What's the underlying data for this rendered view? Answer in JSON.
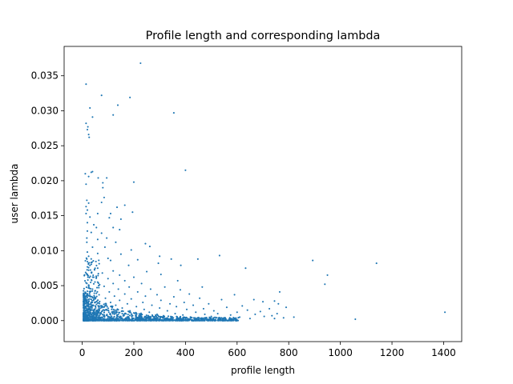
{
  "chart_data": {
    "type": "scatter",
    "title": "Profile length and corresponding lambda",
    "xlabel": "profile length",
    "ylabel": "user lambda",
    "xlim": [
      -70,
      1470
    ],
    "ylim": [
      -0.003,
      0.0392
    ],
    "xticks": [
      0,
      200,
      400,
      600,
      800,
      1000,
      1200,
      1400
    ],
    "xtick_labels": [
      "0",
      "200",
      "400",
      "600",
      "800",
      "1000",
      "1200",
      "1400"
    ],
    "yticks": [
      0.0,
      0.005,
      0.01,
      0.015,
      0.02,
      0.025,
      0.03,
      0.035
    ],
    "ytick_labels": [
      "0.000",
      "0.005",
      "0.010",
      "0.015",
      "0.020",
      "0.025",
      "0.030",
      "0.035"
    ],
    "grid": false,
    "legend": "none",
    "marker_color": "#1f77b4",
    "marker_size": 1.5,
    "points": [
      [
        226,
        0.0368
      ],
      [
        15,
        0.0338
      ],
      [
        75,
        0.0322
      ],
      [
        185,
        0.0319
      ],
      [
        30,
        0.0304
      ],
      [
        138,
        0.0308
      ],
      [
        355,
        0.0297
      ],
      [
        40,
        0.0291
      ],
      [
        120,
        0.0294
      ],
      [
        15,
        0.0282
      ],
      [
        22,
        0.0277
      ],
      [
        20,
        0.0273
      ],
      [
        25,
        0.0266
      ],
      [
        27,
        0.0262
      ],
      [
        400,
        0.0215
      ],
      [
        12,
        0.021
      ],
      [
        35,
        0.0212
      ],
      [
        40,
        0.0213
      ],
      [
        25,
        0.0206
      ],
      [
        62,
        0.0204
      ],
      [
        95,
        0.0204
      ],
      [
        200,
        0.0198
      ],
      [
        15,
        0.0195
      ],
      [
        80,
        0.0197
      ],
      [
        80,
        0.019
      ],
      [
        85,
        0.0176
      ],
      [
        18,
        0.0172
      ],
      [
        25,
        0.0168
      ],
      [
        75,
        0.0169
      ],
      [
        15,
        0.0163
      ],
      [
        165,
        0.0165
      ],
      [
        135,
        0.0162
      ],
      [
        20,
        0.0158
      ],
      [
        15,
        0.0153
      ],
      [
        60,
        0.0153
      ],
      [
        110,
        0.0153
      ],
      [
        195,
        0.0155
      ],
      [
        30,
        0.0148
      ],
      [
        105,
        0.0147
      ],
      [
        150,
        0.0145
      ],
      [
        20,
        0.014
      ],
      [
        45,
        0.0137
      ],
      [
        55,
        0.0133
      ],
      [
        120,
        0.0133
      ],
      [
        145,
        0.013
      ],
      [
        20,
        0.0128
      ],
      [
        35,
        0.0126
      ],
      [
        75,
        0.0125
      ],
      [
        18,
        0.0118
      ],
      [
        60,
        0.0116
      ],
      [
        95,
        0.0118
      ],
      [
        18,
        0.0112
      ],
      [
        130,
        0.0112
      ],
      [
        245,
        0.011
      ],
      [
        40,
        0.0105
      ],
      [
        88,
        0.0105
      ],
      [
        262,
        0.0106
      ],
      [
        190,
        0.0101
      ],
      [
        20,
        0.0098
      ],
      [
        60,
        0.0096
      ],
      [
        150,
        0.0095
      ],
      [
        25,
        0.0092
      ],
      [
        300,
        0.0092
      ],
      [
        532,
        0.0093
      ],
      [
        100,
        0.0089
      ],
      [
        18,
        0.0088
      ],
      [
        110,
        0.0086
      ],
      [
        215,
        0.0087
      ],
      [
        345,
        0.0088
      ],
      [
        448,
        0.0088
      ],
      [
        893,
        0.0086
      ],
      [
        35,
        0.0083
      ],
      [
        295,
        0.0082
      ],
      [
        1140,
        0.0082
      ],
      [
        30,
        0.0079
      ],
      [
        180,
        0.0079
      ],
      [
        382,
        0.0079
      ],
      [
        633,
        0.0075
      ],
      [
        60,
        0.0075
      ],
      [
        950,
        0.0065
      ],
      [
        25,
        0.0072
      ],
      [
        120,
        0.0071
      ],
      [
        250,
        0.007
      ],
      [
        20,
        0.0066
      ],
      [
        78,
        0.0068
      ],
      [
        145,
        0.0065
      ],
      [
        305,
        0.0066
      ],
      [
        45,
        0.0062
      ],
      [
        100,
        0.006
      ],
      [
        200,
        0.0062
      ],
      [
        22,
        0.0058
      ],
      [
        165,
        0.0057
      ],
      [
        370,
        0.0057
      ],
      [
        60,
        0.0055
      ],
      [
        120,
        0.0053
      ],
      [
        230,
        0.0053
      ],
      [
        940,
        0.0052
      ],
      [
        25,
        0.005
      ],
      [
        85,
        0.0049
      ],
      [
        182,
        0.0048
      ],
      [
        320,
        0.0048
      ],
      [
        465,
        0.0048
      ],
      [
        40,
        0.0045
      ],
      [
        140,
        0.0045
      ],
      [
        265,
        0.0045
      ],
      [
        380,
        0.0044
      ],
      [
        20,
        0.0042
      ],
      [
        105,
        0.0041
      ],
      [
        215,
        0.0041
      ],
      [
        765,
        0.0041
      ],
      [
        55,
        0.0039
      ],
      [
        165,
        0.0038
      ],
      [
        290,
        0.0037
      ],
      [
        415,
        0.0038
      ],
      [
        590,
        0.0037
      ],
      [
        30,
        0.0036
      ],
      [
        125,
        0.0035
      ],
      [
        245,
        0.0035
      ],
      [
        355,
        0.0034
      ],
      [
        20,
        0.0033
      ],
      [
        90,
        0.0032
      ],
      [
        190,
        0.0031
      ],
      [
        455,
        0.0032
      ],
      [
        540,
        0.003
      ],
      [
        45,
        0.003
      ],
      [
        145,
        0.0029
      ],
      [
        305,
        0.0029
      ],
      [
        665,
        0.003
      ],
      [
        745,
        0.0028
      ],
      [
        25,
        0.0027
      ],
      [
        110,
        0.0026
      ],
      [
        235,
        0.0026
      ],
      [
        395,
        0.0026
      ],
      [
        700,
        0.0027
      ],
      [
        60,
        0.0025
      ],
      [
        175,
        0.0024
      ],
      [
        340,
        0.0024
      ],
      [
        490,
        0.0024
      ],
      [
        760,
        0.0024
      ],
      [
        20,
        0.0022
      ],
      [
        130,
        0.0022
      ],
      [
        270,
        0.0022
      ],
      [
        430,
        0.0022
      ],
      [
        620,
        0.0021
      ],
      [
        80,
        0.002
      ],
      [
        210,
        0.002
      ],
      [
        365,
        0.002
      ],
      [
        560,
        0.0019
      ],
      [
        790,
        0.0019
      ],
      [
        30,
        0.0018
      ],
      [
        155,
        0.0018
      ],
      [
        300,
        0.0018
      ],
      [
        470,
        0.0017
      ],
      [
        725,
        0.0017
      ],
      [
        95,
        0.0016
      ],
      [
        240,
        0.0016
      ],
      [
        405,
        0.0016
      ],
      [
        640,
        0.0015
      ],
      [
        45,
        0.0015
      ],
      [
        185,
        0.0014
      ],
      [
        330,
        0.0014
      ],
      [
        510,
        0.0014
      ],
      [
        690,
        0.0013
      ],
      [
        120,
        0.0013
      ],
      [
        260,
        0.0012
      ],
      [
        440,
        0.0012
      ],
      [
        600,
        0.0012
      ],
      [
        1405,
        0.0012
      ],
      [
        60,
        0.0011
      ],
      [
        200,
        0.0011
      ],
      [
        360,
        0.001
      ],
      [
        525,
        0.001
      ],
      [
        755,
        0.001
      ],
      [
        25,
        0.0009
      ],
      [
        140,
        0.0009
      ],
      [
        290,
        0.0009
      ],
      [
        475,
        0.0009
      ],
      [
        670,
        0.0009
      ],
      [
        85,
        0.0008
      ],
      [
        225,
        0.0008
      ],
      [
        390,
        0.0008
      ],
      [
        575,
        0.0008
      ],
      [
        735,
        0.0007
      ],
      [
        160,
        0.0007
      ],
      [
        315,
        0.0007
      ],
      [
        500,
        0.0006
      ],
      [
        705,
        0.0006
      ],
      [
        820,
        0.0005
      ],
      [
        110,
        0.0005
      ],
      [
        250,
        0.0005
      ],
      [
        420,
        0.0005
      ],
      [
        610,
        0.0005
      ],
      [
        780,
        0.0004
      ],
      [
        40,
        0.0004
      ],
      [
        180,
        0.0004
      ],
      [
        345,
        0.0004
      ],
      [
        540,
        0.0004
      ],
      [
        650,
        0.0003
      ],
      [
        745,
        0.0003
      ],
      [
        1058,
        0.0002
      ]
    ]
  }
}
